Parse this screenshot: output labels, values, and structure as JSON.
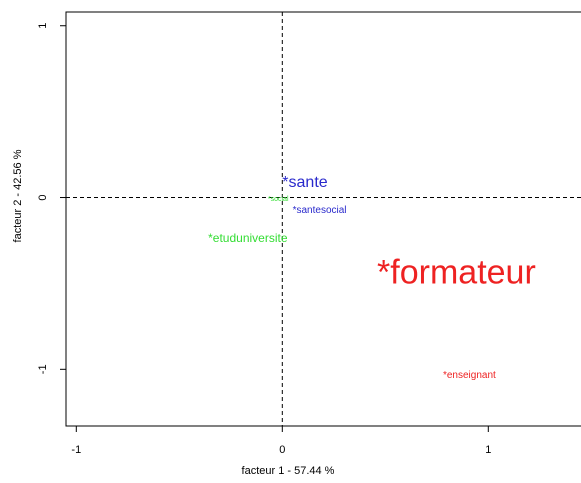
{
  "chart_data": {
    "type": "scatter",
    "xlabel": "facteur  1  - 57.44 %",
    "ylabel": "facteur  2  - 42.56 %",
    "xlim": [
      -1.05,
      1.45
    ],
    "ylim": [
      -1.33,
      1.08
    ],
    "x_ticks": [
      {
        "value": -1,
        "label": "-1"
      },
      {
        "value": 0,
        "label": "0"
      },
      {
        "value": 1,
        "label": "1"
      }
    ],
    "y_ticks": [
      {
        "value": -1,
        "label": "-1"
      },
      {
        "value": 0,
        "label": "0"
      },
      {
        "value": 1,
        "label": "1"
      }
    ],
    "reference_lines": {
      "x": 0,
      "y": 0,
      "style": "dashed"
    },
    "points": [
      {
        "label": "*sante",
        "x": 0.0,
        "y": 0.06,
        "color": "#2a2acc",
        "size": "large"
      },
      {
        "label": "*social",
        "x": -0.07,
        "y": -0.02,
        "color": "#33dd33",
        "size": "tiny"
      },
      {
        "label": "*santesocial",
        "x": 0.05,
        "y": -0.09,
        "color": "#2a2acc",
        "size": "small"
      },
      {
        "label": "*etuduniversite",
        "x": -0.36,
        "y": -0.26,
        "color": "#33dd33",
        "size": "medium"
      },
      {
        "label": "*formateur",
        "x": 0.46,
        "y": -0.5,
        "color": "#ee2222",
        "size": "huge"
      },
      {
        "label": "*enseignant",
        "x": 0.78,
        "y": -1.05,
        "color": "#ee2222",
        "size": "small"
      }
    ]
  }
}
